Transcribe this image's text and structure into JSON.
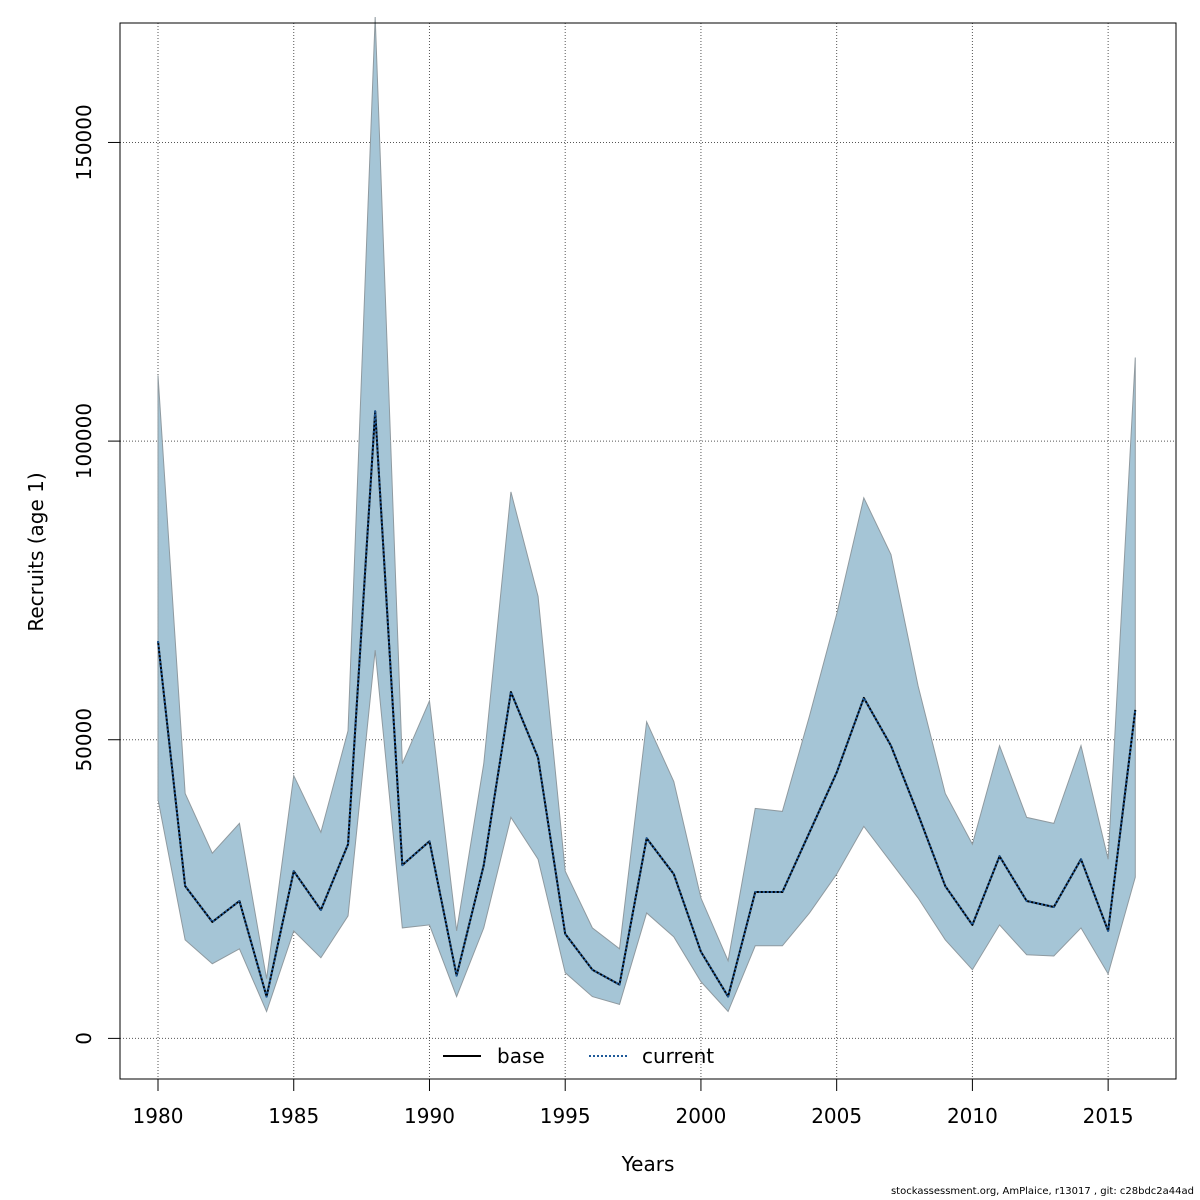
{
  "chart_data": {
    "type": "line",
    "xlabel": "Years",
    "ylabel": "Recruits (age 1)",
    "xlim": [
      1978.6,
      2017.5
    ],
    "ylim": [
      -6800,
      170000
    ],
    "x_ticks": [
      1980,
      1985,
      1990,
      1995,
      2000,
      2005,
      2010,
      2015
    ],
    "x_tick_labels": [
      "1980",
      "1985",
      "1990",
      "1995",
      "2000",
      "2005",
      "2010",
      "2015"
    ],
    "y_ticks": [
      0,
      50000,
      100000,
      150000
    ],
    "y_tick_labels": [
      "0",
      "50000",
      "100000",
      "150000"
    ],
    "grid": true,
    "legend_position": "bottom-center",
    "x": [
      1980,
      1981,
      1982,
      1983,
      1984,
      1985,
      1986,
      1987,
      1988,
      1989,
      1990,
      1991,
      1992,
      1993,
      1994,
      1995,
      1996,
      1997,
      1998,
      1999,
      2000,
      2001,
      2002,
      2003,
      2004,
      2005,
      2006,
      2007,
      2008,
      2009,
      2010,
      2011,
      2012,
      2013,
      2014,
      2015,
      2016
    ],
    "band": {
      "color": "#a5c5d6",
      "edge_color": "#8f9aa0",
      "upper": [
        111000,
        41000,
        31000,
        36000,
        10000,
        44000,
        34500,
        51500,
        171000,
        46000,
        56500,
        18000,
        46000,
        91500,
        74000,
        28000,
        18500,
        15000,
        53000,
        43000,
        23500,
        13000,
        38500,
        38000,
        54000,
        71000,
        90500,
        81000,
        59000,
        41000,
        32500,
        49000,
        37000,
        36000,
        49000,
        30000,
        114000
      ],
      "lower": [
        40000,
        16500,
        12500,
        15000,
        4500,
        18000,
        13500,
        20500,
        65000,
        18500,
        19000,
        7000,
        18500,
        37000,
        30000,
        11000,
        7000,
        5700,
        21000,
        17000,
        9500,
        4500,
        15500,
        15500,
        21000,
        27500,
        35500,
        29500,
        23500,
        16500,
        11500,
        19000,
        14000,
        13800,
        18500,
        10800,
        27000
      ]
    },
    "series": [
      {
        "name": "base",
        "color": "#000000",
        "style": "solid",
        "values": [
          66500,
          25500,
          19500,
          23000,
          7000,
          28000,
          21500,
          32500,
          105000,
          29000,
          33000,
          10500,
          29000,
          58000,
          47000,
          17500,
          11500,
          9000,
          33500,
          27500,
          14500,
          7000,
          24500,
          24500,
          34500,
          44500,
          57000,
          49000,
          37500,
          25500,
          19000,
          30500,
          23000,
          22000,
          30000,
          18000,
          55000
        ]
      },
      {
        "name": "current",
        "color": "#1f5a99",
        "style": "dotted",
        "values": [
          66500,
          25500,
          19500,
          23000,
          7000,
          28000,
          21500,
          32500,
          105000,
          29000,
          33000,
          10500,
          29000,
          58000,
          47000,
          17500,
          11500,
          9000,
          33500,
          27500,
          14500,
          7000,
          24500,
          24500,
          34500,
          44500,
          57000,
          49000,
          37500,
          25500,
          19000,
          30500,
          23000,
          22000,
          30000,
          18000,
          55000
        ]
      }
    ]
  },
  "footer": {
    "credit": "stockassessment.org, AmPlaice, r13017 , git: c28bdc2a44ad"
  }
}
